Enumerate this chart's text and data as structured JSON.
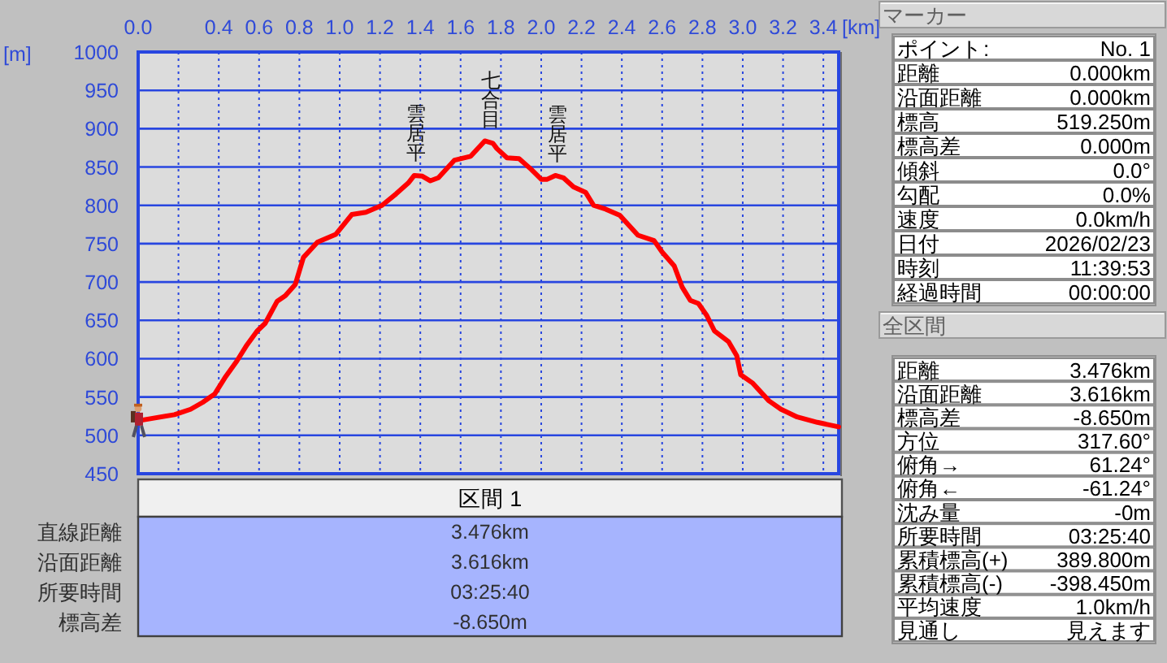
{
  "chart_data": [
    {
      "type": "line",
      "xlabel": "[km]",
      "ylabel": "[m]",
      "x": [
        0,
        0.18,
        0.26,
        0.32,
        0.38,
        0.43,
        0.49,
        0.54,
        0.59,
        0.63,
        0.69,
        0.73,
        0.78,
        0.82,
        0.89,
        0.98,
        1.06,
        1.13,
        1.21,
        1.28,
        1.34,
        1.37,
        1.41,
        1.45,
        1.49,
        1.57,
        1.65,
        1.72,
        1.76,
        1.78,
        1.83,
        1.89,
        1.95,
        2.0,
        2.03,
        2.07,
        2.11,
        2.16,
        2.22,
        2.26,
        2.32,
        2.39,
        2.48,
        2.56,
        2.6,
        2.66,
        2.7,
        2.74,
        2.78,
        2.82,
        2.86,
        2.93,
        2.97,
        2.99,
        3.05,
        3.13,
        3.19,
        3.27,
        3.37,
        3.476
      ],
      "series": [
        {
          "color": "#ff0000",
          "values": [
            519,
            527,
            534,
            543,
            554,
            575,
            597,
            618,
            636,
            646,
            675,
            682,
            697,
            732,
            752,
            762,
            788,
            791,
            800,
            815,
            829,
            839,
            838,
            832,
            836,
            859,
            864,
            884,
            881,
            874,
            862,
            861,
            847,
            834,
            834,
            839,
            836,
            824,
            817,
            800,
            795,
            787,
            761,
            754,
            739,
            721,
            693,
            676,
            672,
            657,
            636,
            622,
            604,
            579,
            568,
            545,
            534,
            524,
            517,
            511
          ]
        }
      ],
      "xlim": [
        0,
        3.476
      ],
      "ylim": [
        450,
        1000
      ],
      "xticks": [
        {
          "value": 0,
          "label": "0.0"
        },
        {
          "value": 0.2,
          "label": null
        },
        0.4,
        0.6,
        0.8,
        {
          "value": 1,
          "label": "1.0"
        },
        1.2,
        1.4,
        1.6,
        1.8,
        {
          "value": 2,
          "label": "2.0"
        },
        2.2,
        2.4,
        2.6,
        2.8,
        {
          "value": 3,
          "label": "3.0"
        },
        3.2,
        3.4
      ],
      "yticks": [
        450,
        500,
        550,
        600,
        650,
        700,
        750,
        800,
        850,
        900,
        950,
        1000
      ],
      "grid": true,
      "annotations": [
        {
          "text": "雲居平",
          "x": 1.38,
          "y": 839
        },
        {
          "text": "七合目",
          "x": 1.75,
          "y": 882
        },
        {
          "text": "雲居平",
          "x": 2.08,
          "y": 838
        }
      ]
    },
    {
      "type": "other",
      "title": "区間 1",
      "categories": [
        "直線距離",
        "沿面距離",
        "所要時間",
        "標高差"
      ],
      "value_labels": [
        "3.476km",
        "3.616km",
        "03:25:40",
        "-8.650m"
      ]
    },
    {
      "type": "other",
      "title": "マーカー",
      "categories": [
        "ポイント",
        "距離",
        "沿面距離",
        "標高",
        "標高差",
        "傾斜",
        "勾配",
        "速度",
        "日付",
        "時刻",
        "経過時間"
      ],
      "value_labels": [
        "No. 1",
        "0.000km",
        "0.000km",
        "519.250m",
        "0.000m",
        "0.0°",
        "0.0%",
        "0.0km/h",
        "2026/02/23",
        "11:39:53",
        "00:00:00"
      ],
      "annotations": [
        ":"
      ]
    },
    {
      "type": "other",
      "title": "全区間",
      "categories": [
        "距離",
        "沿面距離",
        "標高差",
        "方位",
        "俯角→",
        "俯角←",
        "沈み量",
        "所要時間",
        "累積標高(+)",
        "累積標高(-)",
        "平均速度",
        "見通し"
      ],
      "value_labels": [
        "3.476km",
        "3.616km",
        "-8.650m",
        "317.60°",
        "61.24°",
        "-61.24°",
        "-0m",
        "03:25:40",
        "389.800m",
        "-398.450m",
        "1.0km/h",
        "見えます"
      ]
    }
  ]
}
